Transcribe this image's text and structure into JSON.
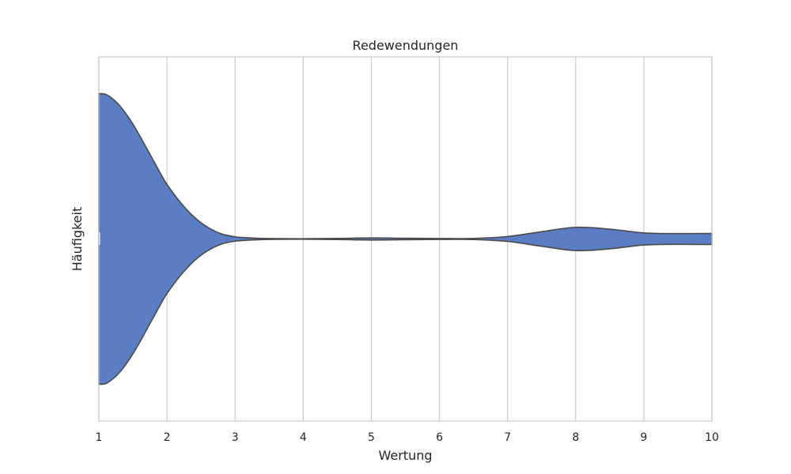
{
  "chart_data": {
    "type": "violin",
    "title": "Redewendungen",
    "xlabel": "Wertung",
    "ylabel": "Häufigkeit",
    "xlim": [
      1,
      10
    ],
    "xticks": [
      1,
      2,
      3,
      4,
      5,
      6,
      7,
      8,
      9,
      10
    ],
    "grid": "vertical",
    "orientation": "horizontal",
    "fill_color": "#5a7dc3",
    "edge_color": "#4a4a4a",
    "grid_color": "#cccccc",
    "density": {
      "x": [
        1,
        1.1,
        1.2,
        1.3,
        1.4,
        1.5,
        1.6,
        1.7,
        1.8,
        1.9,
        2,
        2.2,
        2.4,
        2.6,
        2.8,
        3,
        3.2,
        3.5,
        4,
        4.5,
        5,
        5.5,
        6,
        6.5,
        7,
        7.5,
        8,
        8.5,
        9,
        9.5,
        10
      ],
      "y": [
        1.0,
        0.995,
        0.965,
        0.92,
        0.86,
        0.79,
        0.71,
        0.625,
        0.54,
        0.455,
        0.375,
        0.25,
        0.15,
        0.08,
        0.035,
        0.015,
        0.008,
        0.003,
        0.002,
        0.004,
        0.007,
        0.005,
        0.003,
        0.004,
        0.017,
        0.05,
        0.08,
        0.068,
        0.042,
        0.037,
        0.038
      ]
    }
  }
}
